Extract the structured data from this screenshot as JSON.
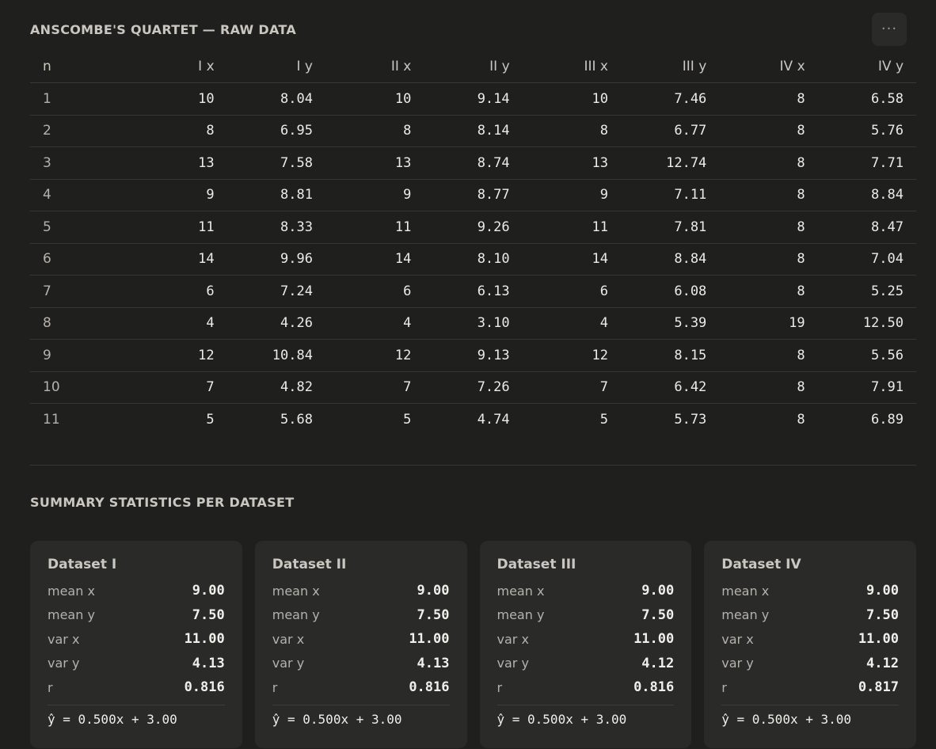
{
  "raw": {
    "title": "ANSCOMBE'S QUARTET — RAW DATA",
    "more_label": "···",
    "columns": [
      "n",
      "I x",
      "I y",
      "II x",
      "II y",
      "III x",
      "III y",
      "IV x",
      "IV y"
    ],
    "rows": [
      [
        "1",
        "10",
        "8.04",
        "10",
        "9.14",
        "10",
        "7.46",
        "8",
        "6.58"
      ],
      [
        "2",
        "8",
        "6.95",
        "8",
        "8.14",
        "8",
        "6.77",
        "8",
        "5.76"
      ],
      [
        "3",
        "13",
        "7.58",
        "13",
        "8.74",
        "13",
        "12.74",
        "8",
        "7.71"
      ],
      [
        "4",
        "9",
        "8.81",
        "9",
        "8.77",
        "9",
        "7.11",
        "8",
        "8.84"
      ],
      [
        "5",
        "11",
        "8.33",
        "11",
        "9.26",
        "11",
        "7.81",
        "8",
        "8.47"
      ],
      [
        "6",
        "14",
        "9.96",
        "14",
        "8.10",
        "14",
        "8.84",
        "8",
        "7.04"
      ],
      [
        "7",
        "6",
        "7.24",
        "6",
        "6.13",
        "6",
        "6.08",
        "8",
        "5.25"
      ],
      [
        "8",
        "4",
        "4.26",
        "4",
        "3.10",
        "4",
        "5.39",
        "19",
        "12.50"
      ],
      [
        "9",
        "12",
        "10.84",
        "12",
        "9.13",
        "12",
        "8.15",
        "8",
        "5.56"
      ],
      [
        "10",
        "7",
        "4.82",
        "7",
        "7.26",
        "7",
        "6.42",
        "8",
        "7.91"
      ],
      [
        "11",
        "5",
        "5.68",
        "5",
        "4.74",
        "5",
        "5.73",
        "8",
        "6.89"
      ]
    ]
  },
  "summary": {
    "title": "SUMMARY STATISTICS PER DATASET",
    "cards": [
      {
        "title": "Dataset I",
        "stats": [
          {
            "label": "mean x",
            "value": "9.00"
          },
          {
            "label": "mean y",
            "value": "7.50"
          },
          {
            "label": "var x",
            "value": "11.00"
          },
          {
            "label": "var y",
            "value": "4.13"
          },
          {
            "label": "r",
            "value": "0.816"
          }
        ],
        "equation": "ŷ = 0.500x + 3.00"
      },
      {
        "title": "Dataset II",
        "stats": [
          {
            "label": "mean x",
            "value": "9.00"
          },
          {
            "label": "mean y",
            "value": "7.50"
          },
          {
            "label": "var x",
            "value": "11.00"
          },
          {
            "label": "var y",
            "value": "4.13"
          },
          {
            "label": "r",
            "value": "0.816"
          }
        ],
        "equation": "ŷ = 0.500x + 3.00"
      },
      {
        "title": "Dataset III",
        "stats": [
          {
            "label": "mean x",
            "value": "9.00"
          },
          {
            "label": "mean y",
            "value": "7.50"
          },
          {
            "label": "var x",
            "value": "11.00"
          },
          {
            "label": "var y",
            "value": "4.12"
          },
          {
            "label": "r",
            "value": "0.816"
          }
        ],
        "equation": "ŷ = 0.500x + 3.00"
      },
      {
        "title": "Dataset IV",
        "stats": [
          {
            "label": "mean x",
            "value": "9.00"
          },
          {
            "label": "mean y",
            "value": "7.50"
          },
          {
            "label": "var x",
            "value": "11.00"
          },
          {
            "label": "var y",
            "value": "4.12"
          },
          {
            "label": "r",
            "value": "0.817"
          }
        ],
        "equation": "ŷ = 0.500x + 3.00"
      }
    ]
  }
}
